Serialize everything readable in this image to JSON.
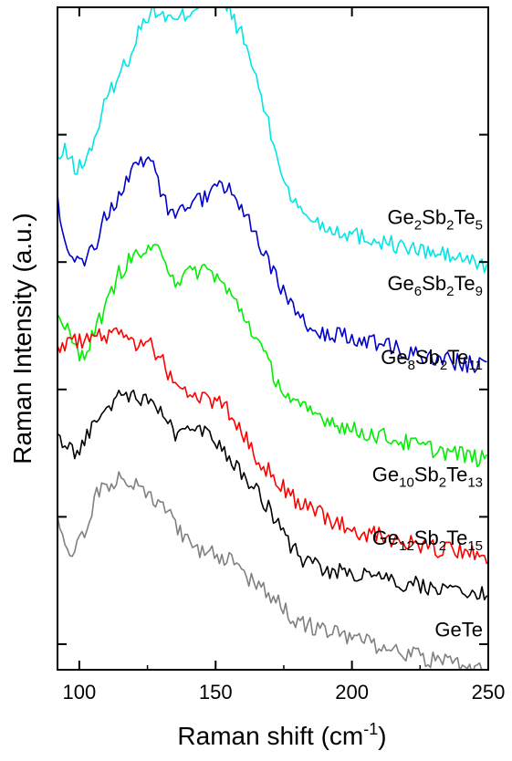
{
  "chart_data": {
    "type": "line",
    "xlabel": "Raman shift (cm",
    "xlabel_sup": "-1",
    "xlabel_tail": ")",
    "ylabel": "Raman Intensity (a.u.)",
    "xlim": [
      92,
      250
    ],
    "ylim": [
      0,
      5
    ],
    "x_ticks": [
      100,
      150,
      200,
      250
    ],
    "x_tick_labels": [
      "100",
      "150",
      "200",
      "250"
    ],
    "y_ticks": [
      0,
      1,
      2,
      3,
      4,
      5
    ],
    "y_tick_labels_visible": false,
    "grid": false,
    "legend": "inline labels",
    "series": [
      {
        "name": "Ge2Sb2Te5",
        "label_parts": [
          [
            "Ge",
            ""
          ],
          [
            "2",
            "sub"
          ],
          [
            "Sb",
            ""
          ],
          [
            "2",
            "sub"
          ],
          [
            "Te",
            ""
          ],
          [
            "5",
            "sub"
          ]
        ],
        "color": "#00e5e5",
        "label_at": [
          250,
          3.3
        ],
        "x": [
          92,
          95,
          98,
          100,
          103,
          106,
          110,
          114,
          118,
          122,
          126,
          130,
          135,
          140,
          145,
          150,
          155,
          160,
          165,
          170,
          175,
          180,
          190,
          200,
          210,
          220,
          230,
          240,
          250
        ],
        "y": [
          3.8,
          3.87,
          3.75,
          3.74,
          3.82,
          4.0,
          4.28,
          4.45,
          4.6,
          4.82,
          4.98,
          4.95,
          4.88,
          4.96,
          5.05,
          5.13,
          4.98,
          4.76,
          4.44,
          4.02,
          3.65,
          3.42,
          3.28,
          3.22,
          3.17,
          3.11,
          3.07,
          3.03,
          2.96
        ]
      },
      {
        "name": "Ge6Sb2Te9",
        "label_parts": [
          [
            "Ge",
            ""
          ],
          [
            "6",
            "sub"
          ],
          [
            "Sb",
            ""
          ],
          [
            "2",
            "sub"
          ],
          [
            "Te",
            ""
          ],
          [
            "9",
            "sub"
          ]
        ],
        "color": "#0000cc",
        "label_at": [
          250,
          2.78
        ],
        "x": [
          92,
          95,
          98,
          100,
          103,
          106,
          110,
          114,
          118,
          122,
          126,
          130,
          135,
          140,
          145,
          150,
          155,
          160,
          165,
          170,
          175,
          180,
          190,
          200,
          210,
          220,
          230,
          240,
          250
        ],
        "y": [
          3.5,
          3.15,
          3.05,
          3.0,
          3.03,
          3.15,
          3.38,
          3.5,
          3.66,
          3.78,
          3.82,
          3.52,
          3.35,
          3.44,
          3.5,
          3.6,
          3.56,
          3.4,
          3.18,
          2.95,
          2.76,
          2.55,
          2.45,
          2.4,
          2.35,
          2.3,
          2.24,
          2.21,
          2.18
        ]
      },
      {
        "name": "Ge8Sb2Te11",
        "label_parts": [
          [
            "Ge",
            ""
          ],
          [
            "8",
            "sub"
          ],
          [
            "Sb",
            ""
          ],
          [
            "2",
            "sub"
          ],
          [
            "Te",
            ""
          ],
          [
            "11",
            "sub"
          ]
        ],
        "color": "#00ee00",
        "label_at": [
          250,
          2.2
        ],
        "x": [
          92,
          95,
          98,
          100,
          103,
          106,
          110,
          114,
          118,
          122,
          126,
          130,
          135,
          140,
          145,
          150,
          155,
          160,
          165,
          170,
          175,
          180,
          190,
          200,
          210,
          220,
          230,
          240,
          250
        ],
        "y": [
          2.55,
          2.5,
          2.35,
          2.28,
          2.3,
          2.5,
          2.65,
          2.9,
          3.0,
          3.08,
          3.06,
          3.12,
          2.85,
          2.9,
          2.95,
          2.9,
          2.75,
          2.6,
          2.4,
          2.17,
          1.98,
          1.86,
          1.78,
          1.68,
          1.64,
          1.58,
          1.53,
          1.49,
          1.44
        ]
      },
      {
        "name": "Ge10Sb2Te13",
        "label_parts": [
          [
            "Ge",
            ""
          ],
          [
            "10",
            "sub"
          ],
          [
            "Sb",
            ""
          ],
          [
            "2",
            "sub"
          ],
          [
            "Te",
            ""
          ],
          [
            "13",
            "sub"
          ]
        ],
        "color": "#ff0000",
        "label_at": [
          250,
          1.28
        ],
        "x": [
          92,
          95,
          98,
          100,
          103,
          106,
          110,
          114,
          118,
          122,
          126,
          130,
          135,
          140,
          145,
          150,
          155,
          160,
          165,
          170,
          175,
          180,
          190,
          200,
          210,
          220,
          230,
          240,
          250
        ],
        "y": [
          2.3,
          2.38,
          2.4,
          2.37,
          2.4,
          2.45,
          2.42,
          2.45,
          2.4,
          2.35,
          2.35,
          2.23,
          2.05,
          1.95,
          1.95,
          1.9,
          1.82,
          1.65,
          1.45,
          1.35,
          1.22,
          1.12,
          1.0,
          0.9,
          0.85,
          0.8,
          0.75,
          0.72,
          0.68
        ]
      },
      {
        "name": "Ge12Sb2Te15",
        "label_parts": [
          [
            "Ge",
            ""
          ],
          [
            "12",
            "sub"
          ],
          [
            "Sb",
            ""
          ],
          [
            "2",
            "sub"
          ],
          [
            "Te",
            ""
          ],
          [
            "15",
            "sub"
          ]
        ],
        "color": "#000000",
        "label_at": [
          250,
          0.78
        ],
        "x": [
          92,
          95,
          98,
          100,
          103,
          106,
          110,
          114,
          118,
          122,
          126,
          130,
          135,
          140,
          145,
          150,
          155,
          160,
          165,
          170,
          175,
          180,
          190,
          200,
          210,
          220,
          230,
          240,
          250
        ],
        "y": [
          1.6,
          1.55,
          1.5,
          1.55,
          1.65,
          1.75,
          1.87,
          1.93,
          1.95,
          1.9,
          1.9,
          1.85,
          1.65,
          1.65,
          1.7,
          1.6,
          1.48,
          1.35,
          1.22,
          1.05,
          0.85,
          0.7,
          0.58,
          0.55,
          0.5,
          0.48,
          0.45,
          0.42,
          0.38
        ]
      },
      {
        "name": "GeTe",
        "label_parts": [
          [
            "GeTe",
            ""
          ]
        ],
        "color": "#808080",
        "label_at": [
          250,
          0.06
        ],
        "x": [
          92,
          95,
          98,
          100,
          103,
          106,
          110,
          114,
          118,
          122,
          126,
          130,
          135,
          140,
          145,
          150,
          155,
          160,
          165,
          170,
          175,
          180,
          190,
          200,
          210,
          220,
          230,
          240,
          250
        ],
        "y": [
          0.95,
          0.8,
          0.72,
          0.78,
          0.95,
          1.15,
          1.26,
          1.3,
          1.3,
          1.25,
          1.18,
          1.1,
          0.95,
          0.8,
          0.72,
          0.7,
          0.65,
          0.55,
          0.48,
          0.38,
          0.28,
          0.18,
          0.1,
          0.05,
          -0.02,
          -0.08,
          -0.12,
          -0.17,
          -0.2
        ]
      }
    ]
  }
}
